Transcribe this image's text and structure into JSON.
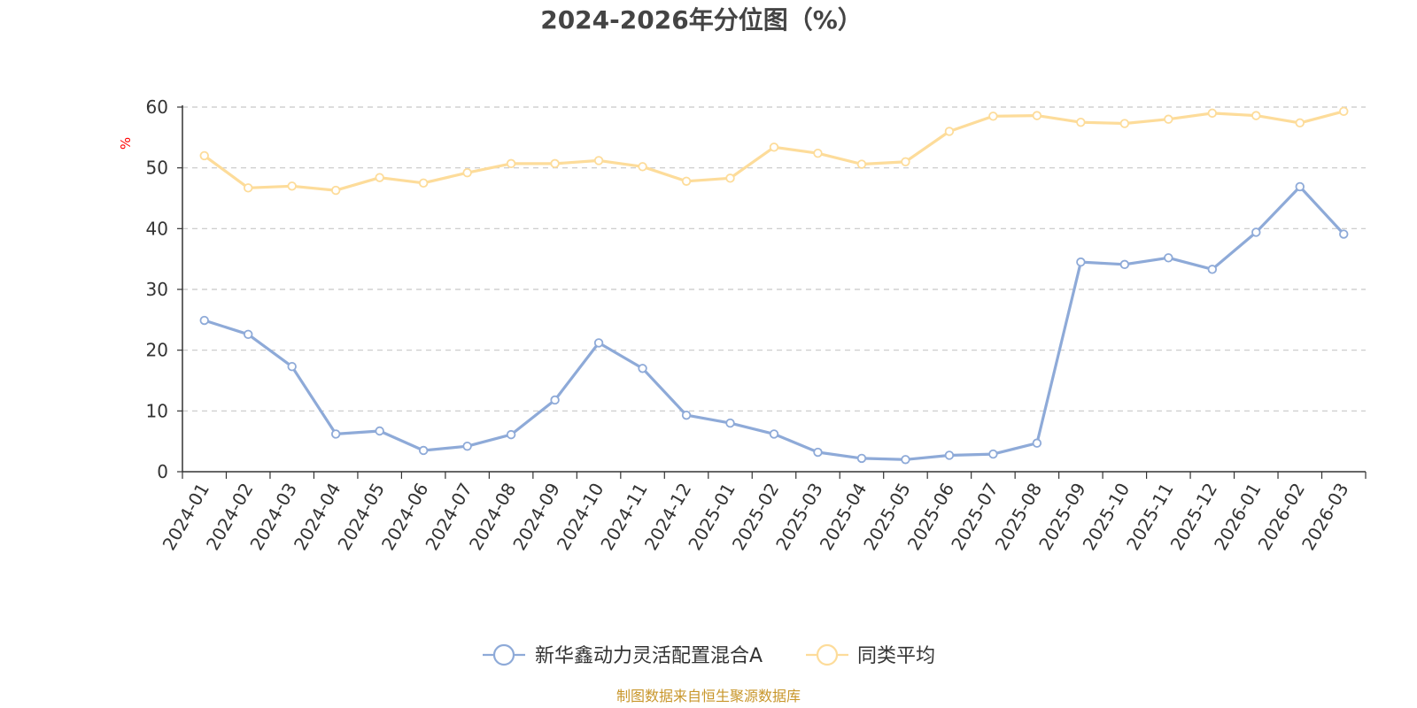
{
  "chart_data": {
    "type": "line",
    "title": "2024-2026年分位图（%）",
    "ylabel": "%",
    "xlabel": "",
    "ylim": [
      0,
      60
    ],
    "yticks": [
      0,
      10,
      20,
      30,
      40,
      50,
      60
    ],
    "grid": true,
    "legend_position": "bottom-center",
    "categories": [
      "2024-01",
      "2024-02",
      "2024-03",
      "2024-04",
      "2024-05",
      "2024-06",
      "2024-07",
      "2024-08",
      "2024-09",
      "2024-10",
      "2024-11",
      "2024-12",
      "2025-01",
      "2025-02",
      "2025-03",
      "2025-04",
      "2025-05",
      "2025-06",
      "2025-07",
      "2025-08",
      "2025-09",
      "2025-10",
      "2025-11",
      "2025-12",
      "2026-01",
      "2026-02",
      "2026-03"
    ],
    "series": [
      {
        "name": "新华鑫动力灵活配置混合A",
        "color": "#8eaad8",
        "values": [
          24.9,
          22.6,
          17.3,
          6.2,
          6.7,
          3.5,
          4.2,
          6.1,
          11.8,
          21.2,
          17.0,
          9.3,
          8.0,
          6.2,
          3.2,
          2.2,
          2.0,
          2.7,
          2.9,
          4.7,
          34.5,
          34.1,
          35.2,
          33.3,
          39.4,
          46.9,
          39.1
        ]
      },
      {
        "name": "同类平均",
        "color": "#fddc9a",
        "values": [
          52.0,
          46.7,
          47.0,
          46.3,
          48.4,
          47.5,
          49.2,
          50.7,
          50.7,
          51.2,
          50.2,
          47.8,
          48.3,
          53.4,
          52.4,
          50.6,
          51.0,
          56.0,
          58.5,
          58.6,
          57.5,
          57.3,
          58.0,
          59.0,
          58.6,
          57.4,
          59.3
        ]
      }
    ],
    "source": "制图数据来自恒生聚源数据库"
  }
}
